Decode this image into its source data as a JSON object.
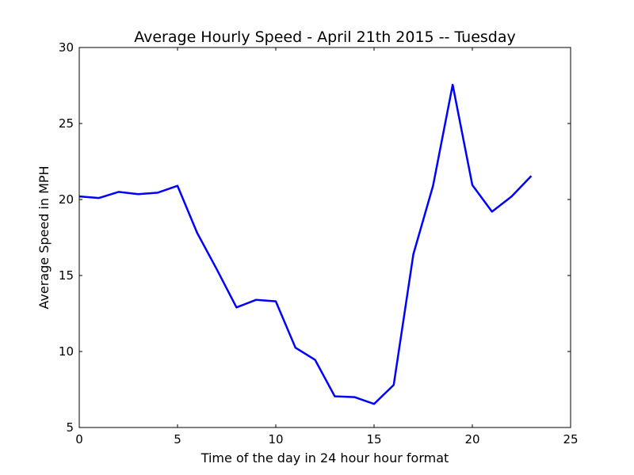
{
  "chart_data": {
    "type": "line",
    "title": "Average Hourly Speed - April 21th 2015 -- Tuesday",
    "xlabel": "Time of the day in 24 hour hour format",
    "ylabel": "Average Speed in MPH",
    "xlim": [
      0,
      25
    ],
    "ylim": [
      5,
      30
    ],
    "xticks": [
      0,
      5,
      10,
      15,
      20,
      25
    ],
    "yticks": [
      5,
      10,
      15,
      20,
      25,
      30
    ],
    "xtick_labels": [
      "0",
      "5",
      "10",
      "15",
      "20",
      "25"
    ],
    "ytick_labels": [
      "5",
      "10",
      "15",
      "20",
      "25",
      "30"
    ],
    "grid": false,
    "series": [
      {
        "color": "#0000ff",
        "x": [
          0,
          1,
          2,
          3,
          4,
          5,
          6,
          7,
          8,
          9,
          10,
          11,
          12,
          13,
          14,
          15,
          16,
          17,
          18,
          19,
          20,
          21,
          22,
          23
        ],
        "y": [
          20.2,
          20.1,
          20.5,
          20.35,
          20.45,
          20.9,
          17.8,
          15.4,
          12.9,
          13.4,
          13.3,
          10.25,
          9.45,
          7.05,
          7.0,
          6.55,
          7.8,
          16.4,
          20.9,
          27.55,
          20.95,
          19.2,
          20.2,
          21.55
        ]
      }
    ]
  }
}
